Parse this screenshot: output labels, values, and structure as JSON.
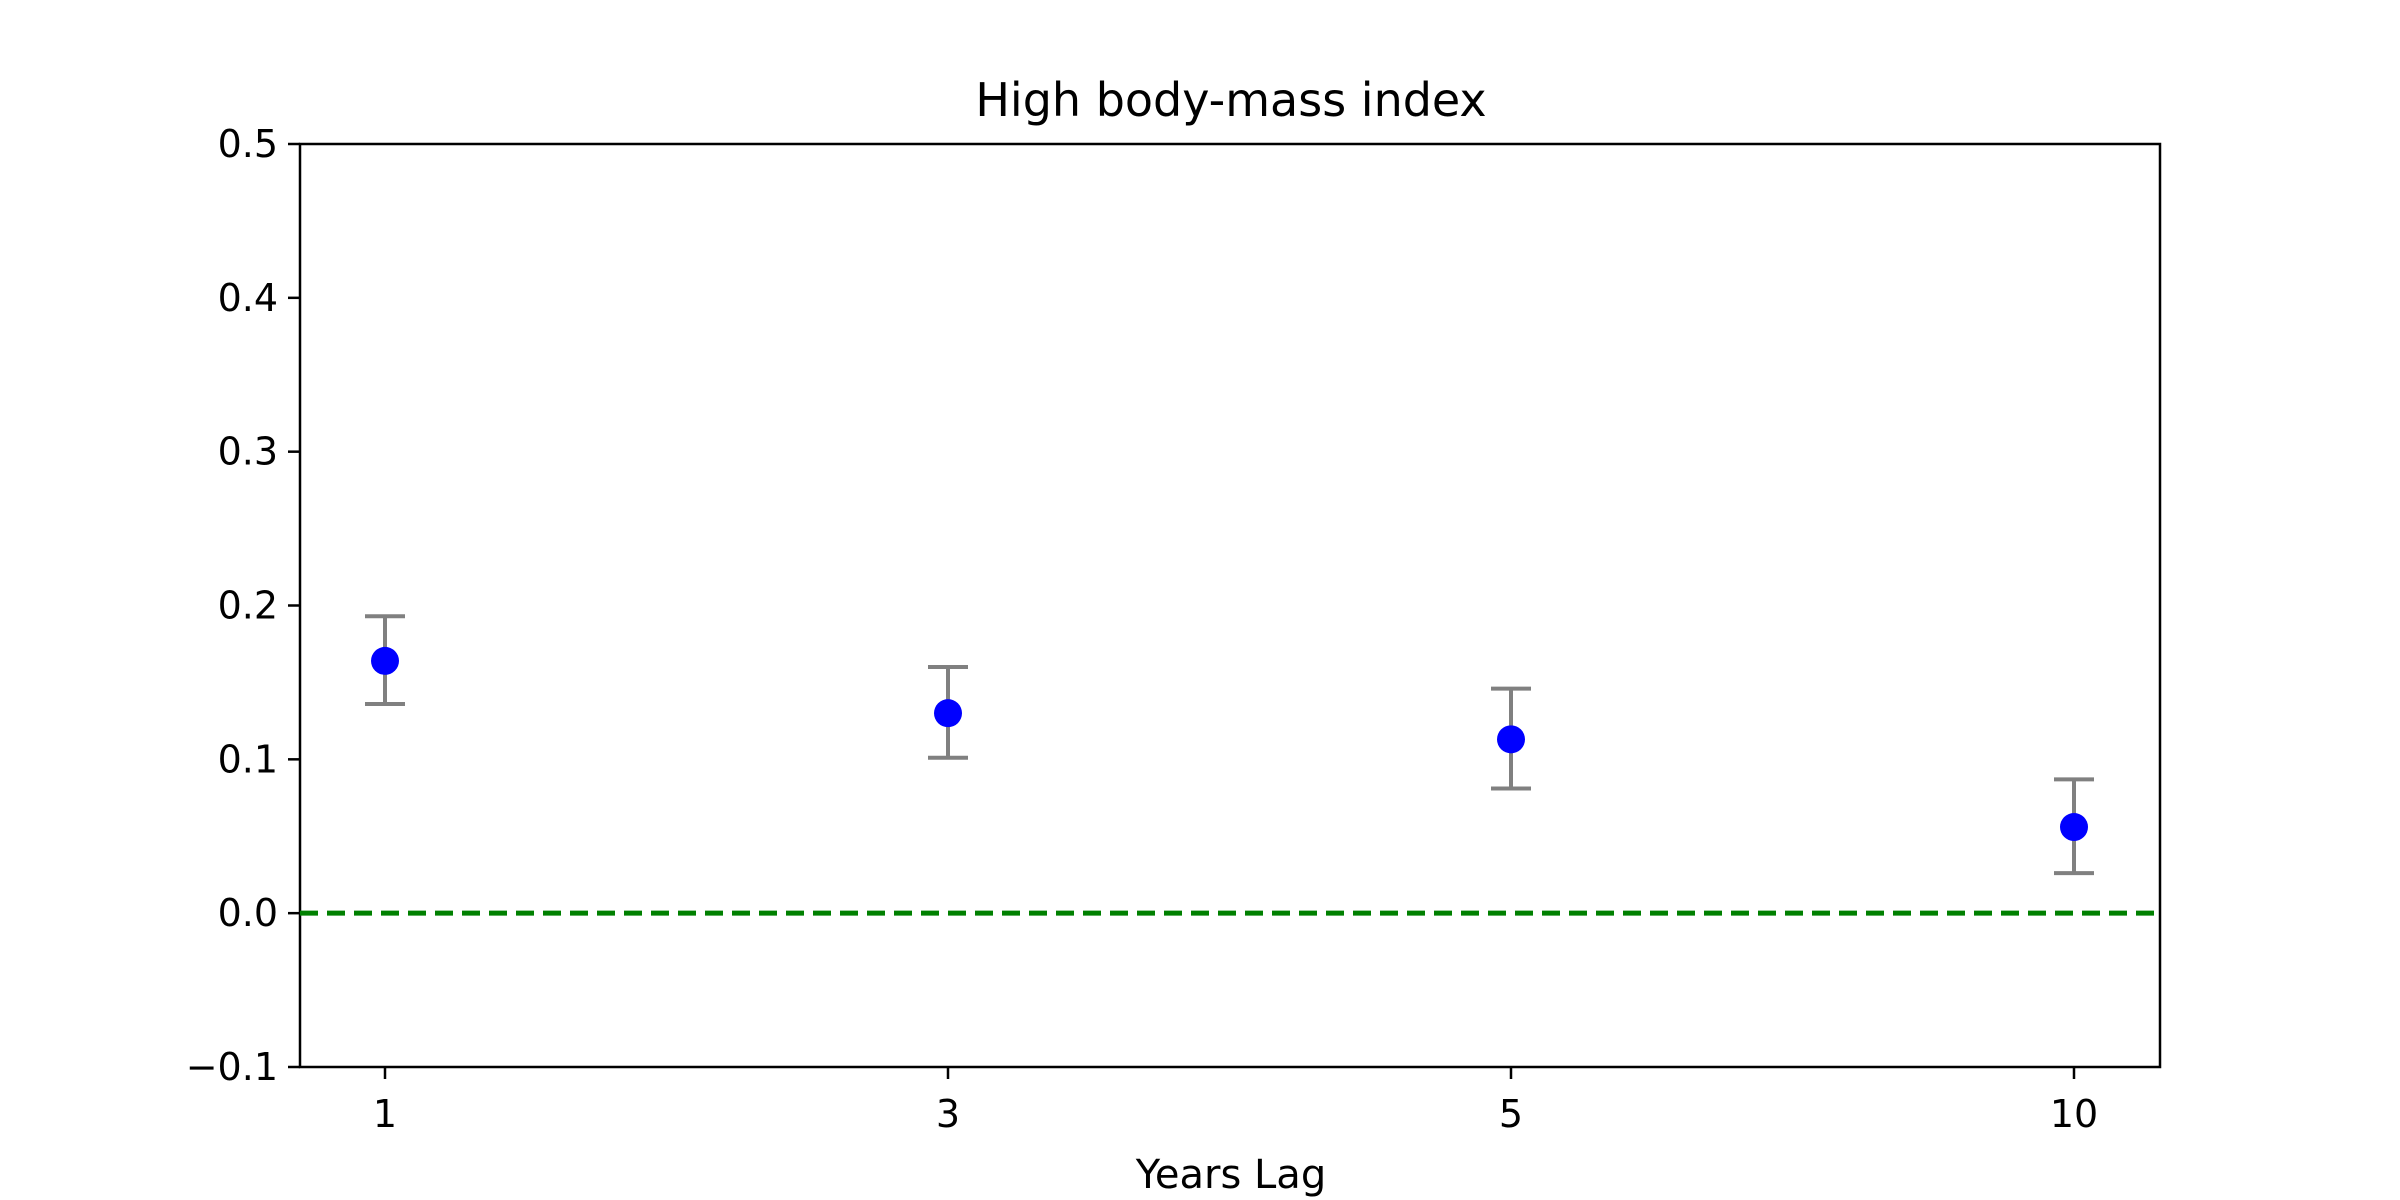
{
  "chart_data": {
    "type": "scatter",
    "title": "High body-mass index",
    "xlabel": "Years Lag",
    "ylabel": "",
    "categories": [
      "1",
      "3",
      "5",
      "10"
    ],
    "ylim": [
      -0.1,
      0.5
    ],
    "yticks": [
      "−0.1",
      "0.0",
      "0.1",
      "0.2",
      "0.3",
      "0.4",
      "0.5"
    ],
    "ytick_values": [
      -0.1,
      0.0,
      0.1,
      0.2,
      0.3,
      0.4,
      0.5
    ],
    "grid": false,
    "series": [
      {
        "values": [
          0.164,
          0.13,
          0.113,
          0.056
        ],
        "err_low": [
          0.136,
          0.101,
          0.081,
          0.026
        ],
        "err_high": [
          0.193,
          0.16,
          0.146,
          0.087
        ]
      }
    ],
    "reference_line": {
      "y": 0.0,
      "style": "dashed"
    }
  },
  "colors": {
    "point": "#0000ff",
    "errorbar": "#808080",
    "reference_line": "#008000",
    "axes": "#000000"
  }
}
